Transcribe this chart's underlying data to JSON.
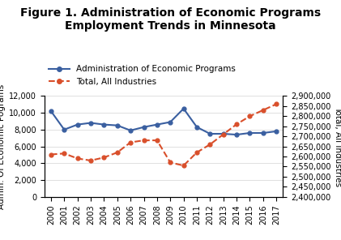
{
  "title": "Figure 1. Administration of Economic Programs\nEmployment Trends in Minnesota",
  "years": [
    2000,
    2001,
    2002,
    2003,
    2004,
    2005,
    2006,
    2007,
    2008,
    2009,
    2010,
    2011,
    2012,
    2013,
    2014,
    2015,
    2016,
    2017
  ],
  "admin_econ": [
    10200,
    8000,
    8600,
    8800,
    8600,
    8500,
    7900,
    8300,
    8600,
    8900,
    10500,
    8300,
    7500,
    7500,
    7400,
    7600,
    7600,
    7800
  ],
  "total_all": [
    2610000,
    2615000,
    2590000,
    2580000,
    2595000,
    2620000,
    2670000,
    2680000,
    2680000,
    2570000,
    2555000,
    2620000,
    2660000,
    2710000,
    2760000,
    2800000,
    2830000,
    2860000
  ],
  "admin_color": "#3a5fa0",
  "total_color": "#d94f2b",
  "ylabel_left": "Admin. Of Economic Pograms",
  "ylabel_right": "Total, All Industries",
  "ylim_left": [
    0,
    12000
  ],
  "ylim_right": [
    2400000,
    2900000
  ],
  "yticks_left": [
    0,
    2000,
    4000,
    6000,
    8000,
    10000,
    12000
  ],
  "yticks_right": [
    2400000,
    2450000,
    2500000,
    2550000,
    2600000,
    2650000,
    2700000,
    2750000,
    2800000,
    2850000,
    2900000
  ],
  "legend_label_admin": "Administration of Economic Programs",
  "legend_label_total": "Total, All Industries",
  "title_fontsize": 10,
  "axis_fontsize": 7.5,
  "legend_fontsize": 7.5,
  "tick_fontsize": 7
}
